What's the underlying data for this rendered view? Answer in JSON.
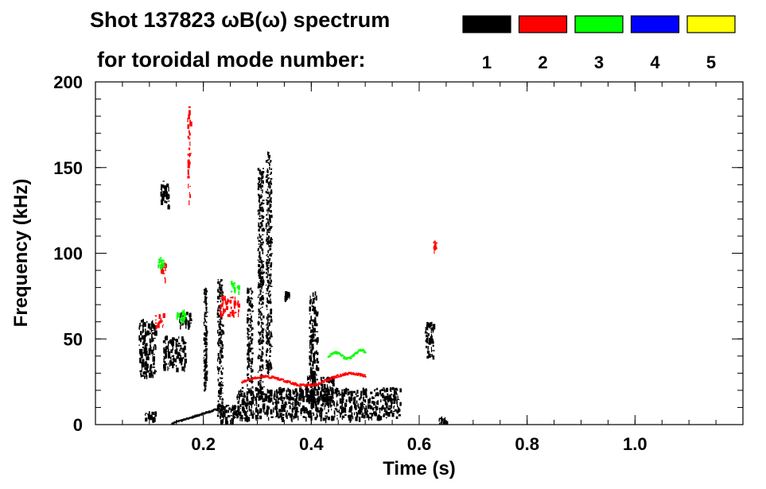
{
  "chart_data": {
    "type": "heatmap",
    "title_line1": "Shot 137823 ωB(ω) spectrum",
    "title_line2": "for toroidal mode number:",
    "xlabel": "Time (s)",
    "ylabel": "Frequency (kHz)",
    "xlim": [
      0.0,
      1.2
    ],
    "ylim": [
      0,
      200
    ],
    "x_ticks": [
      {
        "value": 0.2,
        "label": "0.2"
      },
      {
        "value": 0.4,
        "label": "0.4"
      },
      {
        "value": 0.6,
        "label": "0.6"
      },
      {
        "value": 0.8,
        "label": "0.8"
      },
      {
        "value": 1.0,
        "label": "1.0"
      }
    ],
    "y_ticks": [
      {
        "value": 0,
        "label": "0"
      },
      {
        "value": 50,
        "label": "50"
      },
      {
        "value": 100,
        "label": "100"
      },
      {
        "value": 150,
        "label": "150"
      },
      {
        "value": 200,
        "label": "200"
      }
    ],
    "legend": [
      {
        "mode": "1",
        "color": "#000000"
      },
      {
        "mode": "2",
        "color": "#ff0000"
      },
      {
        "mode": "3",
        "color": "#00ff00"
      },
      {
        "mode": "4",
        "color": "#0000ff"
      },
      {
        "mode": "5",
        "color": "#ffff00"
      }
    ],
    "legend_position": "top-right",
    "grid": false,
    "features": [
      {
        "mode": "1",
        "kind": "band",
        "t": [
          0.08,
          0.11
        ],
        "f": [
          28,
          62
        ]
      },
      {
        "mode": "1",
        "kind": "band",
        "t": [
          0.12,
          0.135
        ],
        "f": [
          128,
          143
        ]
      },
      {
        "mode": "1",
        "kind": "band",
        "t": [
          0.125,
          0.165
        ],
        "f": [
          33,
          52
        ]
      },
      {
        "mode": "1",
        "kind": "band",
        "t": [
          0.155,
          0.175
        ],
        "f": [
          58,
          66
        ]
      },
      {
        "mode": "1",
        "kind": "band",
        "t": [
          0.23,
          0.26
        ],
        "f": [
          2,
          12
        ]
      },
      {
        "mode": "1",
        "kind": "band",
        "t": [
          0.26,
          0.565
        ],
        "f": [
          4,
          22
        ]
      },
      {
        "mode": "1",
        "kind": "band",
        "t": [
          0.39,
          0.44
        ],
        "f": [
          12,
          29
        ]
      },
      {
        "mode": "1",
        "kind": "band",
        "t": [
          0.395,
          0.41
        ],
        "f": [
          28,
          78
        ]
      },
      {
        "mode": "1",
        "kind": "band",
        "t": [
          0.35,
          0.36
        ],
        "f": [
          74,
          78
        ]
      },
      {
        "mode": "1",
        "kind": "band",
        "t": [
          0.61,
          0.625
        ],
        "f": [
          40,
          60
        ]
      },
      {
        "mode": "1",
        "kind": "line",
        "t": [
          0.3,
          0.31
        ],
        "f": [
          15,
          150
        ]
      },
      {
        "mode": "1",
        "kind": "line",
        "t": [
          0.315,
          0.325
        ],
        "f": [
          30,
          160
        ]
      },
      {
        "mode": "1",
        "kind": "line",
        "t": [
          0.28,
          0.29
        ],
        "f": [
          20,
          80
        ]
      },
      {
        "mode": "1",
        "kind": "line",
        "t": [
          0.225,
          0.235
        ],
        "f": [
          5,
          85
        ]
      },
      {
        "mode": "1",
        "kind": "line",
        "t": [
          0.2,
          0.205
        ],
        "f": [
          20,
          80
        ]
      },
      {
        "mode": "1",
        "kind": "sweep",
        "t": [
          0.14,
          0.23
        ],
        "f": [
          1,
          10
        ]
      },
      {
        "mode": "1",
        "kind": "band",
        "t": [
          0.09,
          0.11
        ],
        "f": [
          3,
          8
        ]
      },
      {
        "mode": "1",
        "kind": "band",
        "t": [
          0.635,
          0.65
        ],
        "f": [
          0,
          5
        ]
      },
      {
        "mode": "2",
        "kind": "band",
        "t": [
          0.23,
          0.265
        ],
        "f": [
          64,
          76
        ]
      },
      {
        "mode": "2",
        "kind": "band",
        "t": [
          0.11,
          0.125
        ],
        "f": [
          58,
          66
        ]
      },
      {
        "mode": "2",
        "kind": "band",
        "t": [
          0.12,
          0.13
        ],
        "f": [
          85,
          95
        ]
      },
      {
        "mode": "2",
        "kind": "trace",
        "t": [
          0.27,
          0.5
        ],
        "f": [
          22,
          32
        ]
      },
      {
        "mode": "2",
        "kind": "band",
        "t": [
          0.625,
          0.63
        ],
        "f": [
          102,
          108
        ]
      },
      {
        "mode": "2",
        "kind": "band",
        "t": [
          0.17,
          0.175
        ],
        "f": [
          130,
          186
        ]
      },
      {
        "mode": "3",
        "kind": "band",
        "t": [
          0.25,
          0.265
        ],
        "f": [
          78,
          84
        ]
      },
      {
        "mode": "3",
        "kind": "trace",
        "t": [
          0.43,
          0.5
        ],
        "f": [
          38,
          45
        ]
      },
      {
        "mode": "3",
        "kind": "band",
        "t": [
          0.15,
          0.165
        ],
        "f": [
          62,
          68
        ]
      },
      {
        "mode": "3",
        "kind": "band",
        "t": [
          0.115,
          0.125
        ],
        "f": [
          92,
          98
        ]
      }
    ]
  }
}
